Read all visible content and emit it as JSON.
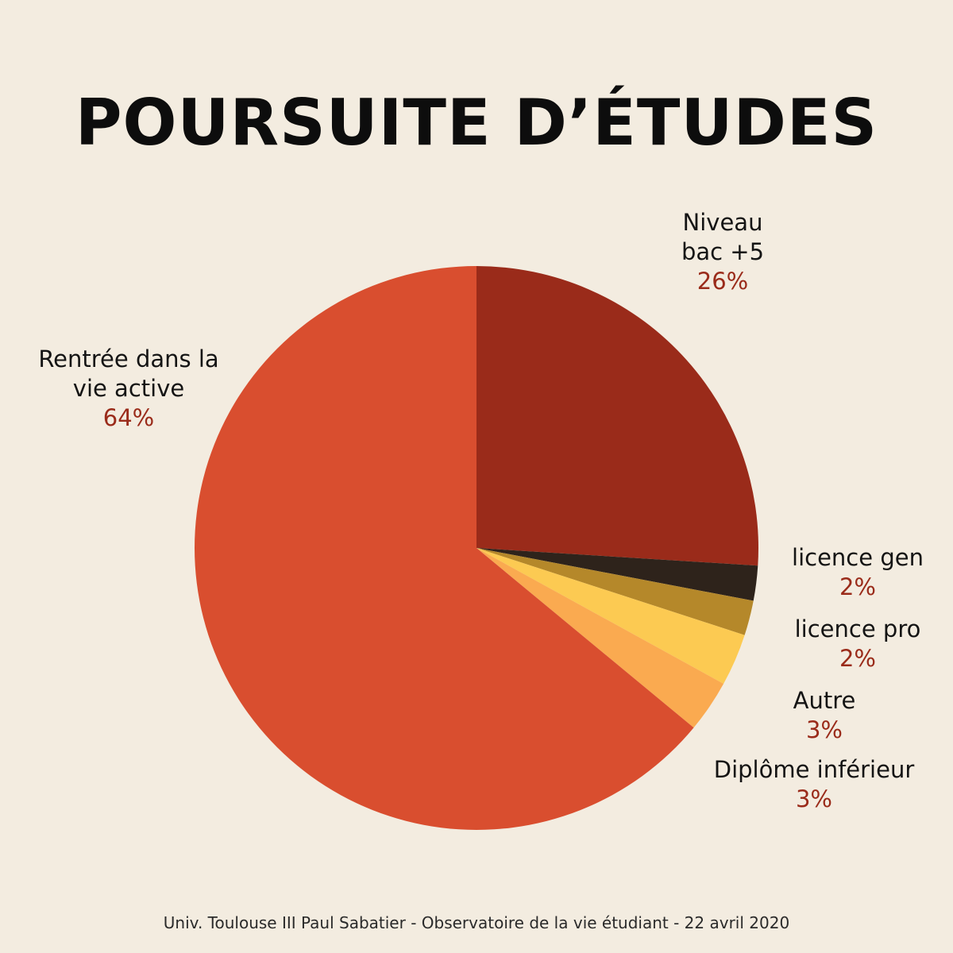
{
  "title": "POURSUITE D’ÉTUDES",
  "footer": "Univ. Toulouse III Paul Sabatier - Observatoire de la vie étudiant - 22 avril 2020",
  "chart_data": {
    "type": "pie",
    "title": "POURSUITE D’ÉTUDES",
    "slices": [
      {
        "label_lines": [
          "Niveau",
          "bac +5"
        ],
        "label": "Niveau bac +5",
        "value": 26,
        "display": "26%",
        "color": "#9a2b1a"
      },
      {
        "label_lines": [
          "licence gen"
        ],
        "label": "licence gen",
        "value": 2,
        "display": "2%",
        "color": "#2e231b"
      },
      {
        "label_lines": [
          "licence pro"
        ],
        "label": "licence pro",
        "value": 2,
        "display": "2%",
        "color": "#b5882a"
      },
      {
        "label_lines": [
          "Autre"
        ],
        "label": "Autre",
        "value": 3,
        "display": "3%",
        "color": "#fcca52"
      },
      {
        "label_lines": [
          "Diplôme inférieur"
        ],
        "label": "Diplôme inférieur",
        "value": 3,
        "display": "3%",
        "color": "#faaa50"
      },
      {
        "label_lines": [
          "Rentrée dans la",
          "vie active"
        ],
        "label": "Rentrée dans la vie active",
        "value": 64,
        "display": "64%",
        "color": "#d94e2f"
      }
    ]
  }
}
